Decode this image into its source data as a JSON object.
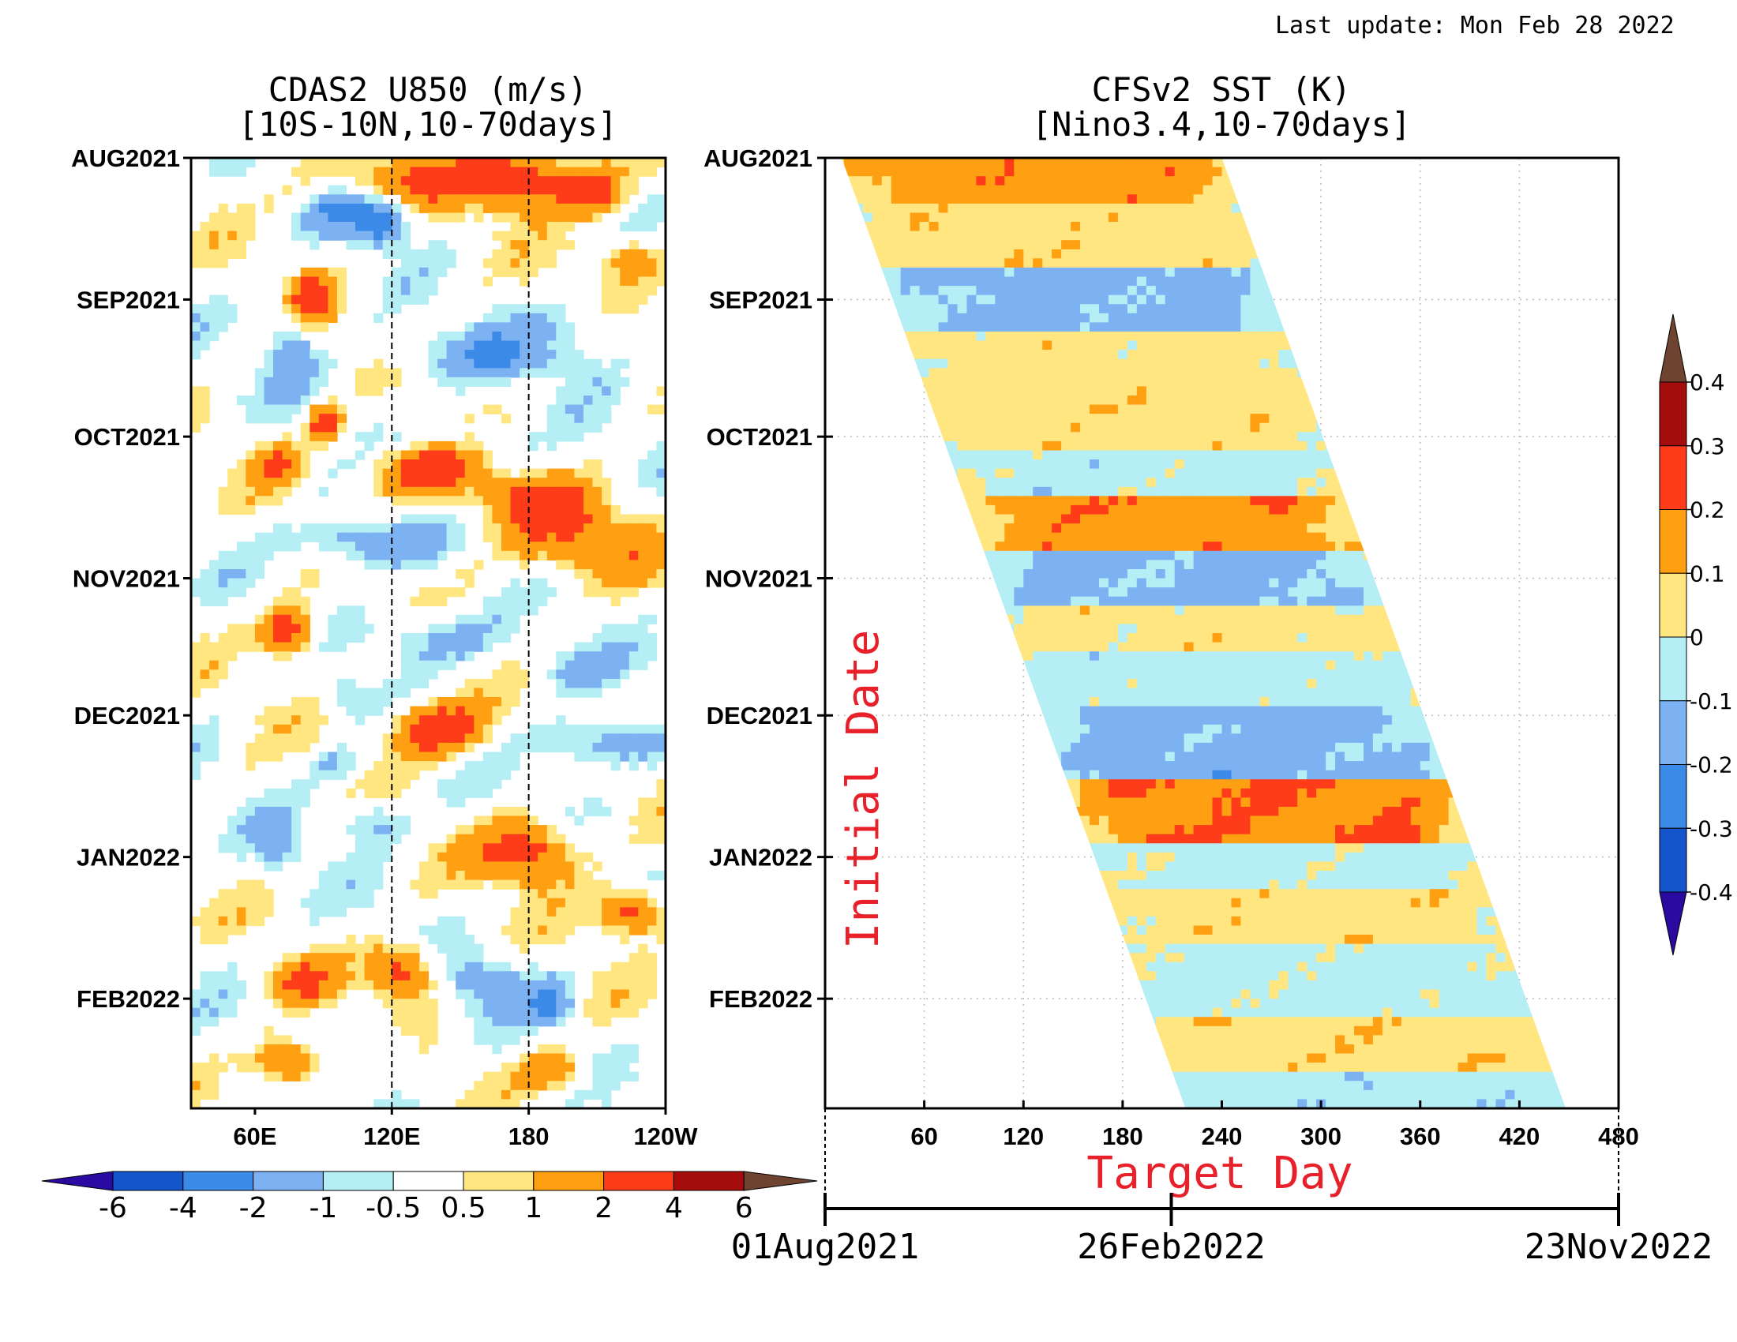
{
  "last_update": "Last update: Mon Feb 28 2022",
  "palette": [
    "#2a0aa0",
    "#1455cc",
    "#3b8ae8",
    "#7cb2f2",
    "#b5eef5",
    "#ffffff",
    "#ffe680",
    "#ff9f12",
    "#ff3c1a",
    "#a50d0d",
    "#6e4330"
  ],
  "chart_data": [
    {
      "type": "heatmap",
      "title": "CDAS2 U850 (m/s)",
      "subtitle": "[10S-10N,10-70days]",
      "x_tick_labels": [
        "60E",
        "120E",
        "180",
        "120W"
      ],
      "x_ticks_deg": [
        60,
        120,
        180,
        240
      ],
      "xlim_deg": [
        32,
        240
      ],
      "dashed_lines_deg": [
        120,
        180
      ],
      "y_tick_labels": [
        "AUG2021",
        "SEP2021",
        "OCT2021",
        "NOV2021",
        "DEC2021",
        "JAN2022",
        "FEB2022"
      ],
      "y_tick_days": [
        0,
        31,
        61,
        92,
        122,
        153,
        184
      ],
      "ylim_days": [
        0,
        208
      ],
      "colorbar": {
        "orientation": "horizontal",
        "levels": [
          "-6",
          "-4",
          "-2",
          "-1",
          "-0.5",
          "0.5",
          "1",
          "2",
          "4",
          "6"
        ]
      },
      "features": [
        {
          "x": 120,
          "day": 5,
          "rx": 40,
          "rd": 5,
          "v": 1.8
        },
        {
          "x": 180,
          "day": 5,
          "rx": 30,
          "rd": 7,
          "v": 3.0
        },
        {
          "x": 210,
          "day": 8,
          "rx": 12,
          "rd": 5,
          "v": 1.8
        },
        {
          "x": 95,
          "day": 10,
          "rx": 12,
          "rd": 6,
          "v": -1.5
        },
        {
          "x": 115,
          "day": 14,
          "rx": 12,
          "rd": 5,
          "v": -3.0
        },
        {
          "x": 225,
          "day": 22,
          "rx": 15,
          "rd": 5,
          "v": 1.8
        },
        {
          "x": 85,
          "day": 31,
          "rx": 9,
          "rd": 5,
          "v": 3.0
        },
        {
          "x": 75,
          "day": 42,
          "rx": 10,
          "rd": 8,
          "v": -1.5
        },
        {
          "x": 165,
          "day": 43,
          "rx": 45,
          "rd": 6,
          "v": -1.5
        },
        {
          "x": 205,
          "day": 36,
          "rx": 25,
          "rd": 5,
          "v": -0.7
        },
        {
          "x": 90,
          "day": 58,
          "rx": 7,
          "rd": 4,
          "v": 3.0
        },
        {
          "x": 150,
          "day": 62,
          "rx": 30,
          "rd": 5,
          "v": -1.0
        },
        {
          "x": 70,
          "day": 67,
          "rx": 10,
          "rd": 5,
          "v": 1.8
        },
        {
          "x": 135,
          "day": 68,
          "rx": 25,
          "rd": 6,
          "v": 3.0
        },
        {
          "x": 180,
          "day": 75,
          "rx": 30,
          "rd": 5,
          "v": 1.8
        },
        {
          "x": 110,
          "day": 84,
          "rx": 30,
          "rd": 5,
          "v": -2.2
        },
        {
          "x": 200,
          "day": 84,
          "rx": 35,
          "rd": 8,
          "v": 2.0
        },
        {
          "x": 75,
          "day": 104,
          "rx": 12,
          "rd": 6,
          "v": 3.0
        },
        {
          "x": 140,
          "day": 105,
          "rx": 30,
          "rd": 6,
          "v": -1.5
        },
        {
          "x": 200,
          "day": 112,
          "rx": 20,
          "rd": 5,
          "v": -1.0
        },
        {
          "x": 100,
          "day": 118,
          "rx": 10,
          "rd": 4,
          "v": -1.0
        },
        {
          "x": 140,
          "day": 125,
          "rx": 22,
          "rd": 6,
          "v": 3.2
        },
        {
          "x": 210,
          "day": 128,
          "rx": 25,
          "rd": 5,
          "v": -2.2
        },
        {
          "x": 95,
          "day": 133,
          "rx": 10,
          "rd": 4,
          "v": -1.2
        },
        {
          "x": 70,
          "day": 150,
          "rx": 10,
          "rd": 6,
          "v": -1.5
        },
        {
          "x": 110,
          "day": 145,
          "rx": 15,
          "rd": 5,
          "v": -1.5
        },
        {
          "x": 180,
          "day": 152,
          "rx": 22,
          "rd": 7,
          "v": 3.0
        },
        {
          "x": 225,
          "day": 165,
          "rx": 15,
          "rd": 5,
          "v": 3.0
        },
        {
          "x": 125,
          "day": 178,
          "rx": 15,
          "rd": 6,
          "v": 3.0
        },
        {
          "x": 80,
          "day": 180,
          "rx": 15,
          "rd": 5,
          "v": 1.8
        },
        {
          "x": 160,
          "day": 180,
          "rx": 20,
          "rd": 6,
          "v": -1.5
        },
        {
          "x": 190,
          "day": 185,
          "rx": 10,
          "rd": 5,
          "v": -2.0
        },
        {
          "x": 75,
          "day": 198,
          "rx": 15,
          "rd": 5,
          "v": 3.0
        },
        {
          "x": 190,
          "day": 200,
          "rx": 15,
          "rd": 5,
          "v": 1.8
        },
        {
          "x": 120,
          "day": 195,
          "rx": 10,
          "rd": 5,
          "v": -1.2
        }
      ]
    },
    {
      "type": "heatmap",
      "title": "CFSv2 SST (K)",
      "subtitle": "[Nino3.4,10-70days]",
      "x_tick_labels": [
        "60",
        "120",
        "180",
        "240",
        "300",
        "360",
        "420",
        "480"
      ],
      "x_ticks": [
        60,
        120,
        180,
        240,
        300,
        360,
        420,
        480
      ],
      "xlim": [
        0,
        480
      ],
      "xlabel": "Target Day",
      "ylabel": "Initial Date",
      "y_tick_labels": [
        "AUG2021",
        "SEP2021",
        "OCT2021",
        "NOV2021",
        "DEC2021",
        "JAN2022",
        "FEB2022"
      ],
      "y_tick_days": [
        0,
        31,
        61,
        92,
        122,
        153,
        184
      ],
      "ylim_days": [
        0,
        208
      ],
      "lead_days": [
        10,
        240
      ],
      "grid": "dotted",
      "colorbar": {
        "orientation": "vertical",
        "levels": [
          "-0.4",
          "-0.3",
          "-0.2",
          "-0.1",
          "0",
          "0.1",
          "0.2",
          "0.3",
          "0.4"
        ]
      },
      "bands": [
        {
          "day": 6,
          "v": 0.16
        },
        {
          "day": 16,
          "v": 0.06
        },
        {
          "day": 32,
          "v": -0.14
        },
        {
          "day": 46,
          "v": 0.05
        },
        {
          "day": 58,
          "v": 0.06
        },
        {
          "day": 68,
          "v": -0.05
        },
        {
          "day": 82,
          "v": 0.17
        },
        {
          "day": 92,
          "v": -0.13
        },
        {
          "day": 103,
          "v": 0.05
        },
        {
          "day": 112,
          "v": -0.05
        },
        {
          "day": 128,
          "v": -0.15
        },
        {
          "day": 144,
          "v": 0.2
        },
        {
          "day": 156,
          "v": -0.04
        },
        {
          "day": 166,
          "v": 0.06
        },
        {
          "day": 180,
          "v": -0.04
        },
        {
          "day": 196,
          "v": 0.07
        },
        {
          "day": 206,
          "v": -0.06
        }
      ],
      "date_axis": {
        "labels": [
          "01Aug2021",
          "26Feb2022",
          "23Nov2022"
        ],
        "days": [
          0,
          209,
          479
        ]
      }
    }
  ]
}
